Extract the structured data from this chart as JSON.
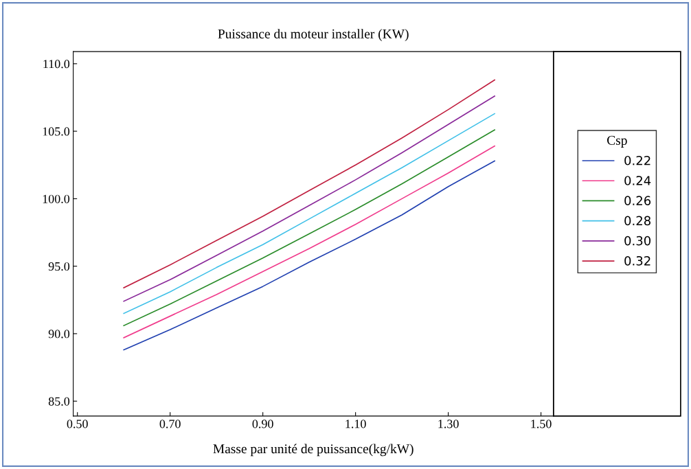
{
  "chart_data": {
    "type": "line",
    "title": "Puissance du moteur installer (KW)",
    "xlabel": "Masse par unité de puissance(kg/kW)",
    "legend_title": "Csp",
    "legend": "right",
    "grid": false,
    "marker": "none",
    "line_style": "solid",
    "x": [
      0.6,
      0.7,
      0.8,
      0.9,
      1.0,
      1.1,
      1.2,
      1.3,
      1.4
    ],
    "xlim": [
      0.491,
      1.527
    ],
    "ylim": [
      83.9,
      110.9
    ],
    "xticks": [
      {
        "value": 0.5,
        "label": "0.50"
      },
      {
        "value": 0.7,
        "label": "0.70"
      },
      {
        "value": 0.9,
        "label": "0.90"
      },
      {
        "value": 1.1,
        "label": "1.10"
      },
      {
        "value": 1.3,
        "label": "1.30"
      },
      {
        "value": 1.5,
        "label": "1.50"
      }
    ],
    "yticks": [
      {
        "value": 85,
        "label": "85.0"
      },
      {
        "value": 90,
        "label": "90.0"
      },
      {
        "value": 95,
        "label": "95.0"
      },
      {
        "value": 100,
        "label": "100.0"
      },
      {
        "value": 105,
        "label": "105.0"
      },
      {
        "value": 110,
        "label": "110.0"
      }
    ],
    "series": [
      {
        "name": "0.22",
        "color": "#2040b0",
        "values": [
          88.8,
          90.3,
          91.9,
          93.5,
          95.3,
          97.0,
          98.8,
          100.9,
          102.8
        ]
      },
      {
        "name": "0.24",
        "color": "#f03c8c",
        "values": [
          89.7,
          91.3,
          92.9,
          94.6,
          96.3,
          98.1,
          100.0,
          101.9,
          103.9
        ]
      },
      {
        "name": "0.26",
        "color": "#2a8c2a",
        "values": [
          90.6,
          92.2,
          93.9,
          95.6,
          97.4,
          99.2,
          101.1,
          103.1,
          105.1
        ]
      },
      {
        "name": "0.28",
        "color": "#40c0e8",
        "values": [
          91.5,
          93.1,
          94.9,
          96.6,
          98.5,
          100.4,
          102.3,
          104.3,
          106.3
        ]
      },
      {
        "name": "0.30",
        "color": "#8a2a9a",
        "values": [
          92.4,
          94.0,
          95.8,
          97.6,
          99.5,
          101.4,
          103.4,
          105.5,
          107.6
        ]
      },
      {
        "name": "0.32",
        "color": "#c02040",
        "values": [
          93.4,
          95.1,
          96.9,
          98.7,
          100.6,
          102.5,
          104.5,
          106.6,
          108.8
        ]
      }
    ]
  }
}
